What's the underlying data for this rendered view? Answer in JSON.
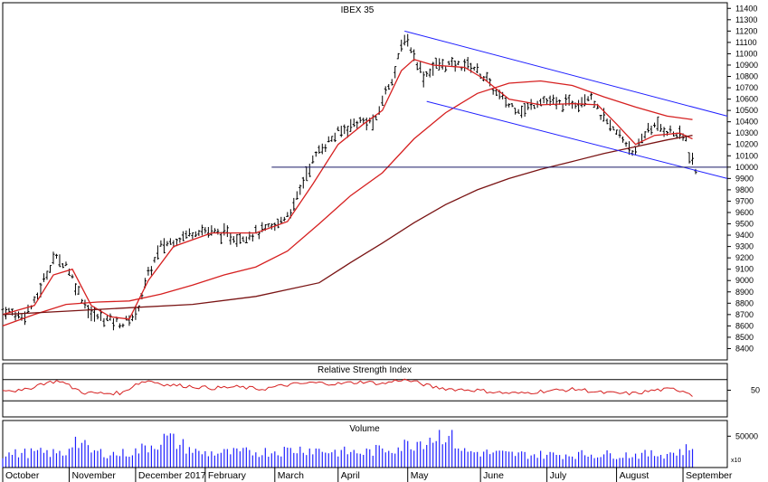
{
  "chart_data": [
    {
      "type": "ohlc",
      "title": "IBEX 35",
      "ylim": [
        8300,
        11450
      ],
      "yticks": [
        8400,
        8500,
        8600,
        8700,
        8800,
        8900,
        9000,
        9100,
        9200,
        9300,
        9400,
        9500,
        9600,
        9700,
        9800,
        9900,
        10000,
        10100,
        10200,
        10300,
        10400,
        10500,
        10600,
        10700,
        10800,
        10900,
        11000,
        11100,
        11200,
        11300,
        11400
      ],
      "x_months": [
        "October",
        "November",
        "December 2017",
        "February",
        "March",
        "April",
        "May",
        "June",
        "July",
        "August",
        "September"
      ],
      "price_path": [
        [
          0,
          8750
        ],
        [
          6,
          8680
        ],
        [
          10,
          8800
        ],
        [
          16,
          9200
        ],
        [
          20,
          9150
        ],
        [
          24,
          8900
        ],
        [
          28,
          8700
        ],
        [
          34,
          8650
        ],
        [
          38,
          8620
        ],
        [
          42,
          8700
        ],
        [
          46,
          9050
        ],
        [
          50,
          9300
        ],
        [
          56,
          9380
        ],
        [
          62,
          9450
        ],
        [
          68,
          9420
        ],
        [
          74,
          9380
        ],
        [
          80,
          9420
        ],
        [
          86,
          9470
        ],
        [
          92,
          9650
        ],
        [
          96,
          9950
        ],
        [
          100,
          10150
        ],
        [
          106,
          10300
        ],
        [
          112,
          10400
        ],
        [
          118,
          10400
        ],
        [
          120,
          10600
        ],
        [
          124,
          10850
        ],
        [
          127,
          11150
        ],
        [
          129,
          11050
        ],
        [
          133,
          10800
        ],
        [
          137,
          10900
        ],
        [
          142,
          10900
        ],
        [
          148,
          10900
        ],
        [
          152,
          10800
        ],
        [
          156,
          10650
        ],
        [
          160,
          10550
        ],
        [
          165,
          10500
        ],
        [
          170,
          10600
        ],
        [
          176,
          10550
        ],
        [
          182,
          10580
        ],
        [
          186,
          10650
        ],
        [
          188,
          10500
        ],
        [
          192,
          10350
        ],
        [
          196,
          10250
        ],
        [
          200,
          10120
        ],
        [
          204,
          10350
        ],
        [
          208,
          10350
        ],
        [
          212,
          10300
        ],
        [
          216,
          10250
        ],
        [
          217,
          10100
        ],
        [
          218,
          10050
        ],
        [
          219,
          9950
        ]
      ],
      "series": [
        {
          "name": "",
          "color": "#d62020",
          "kind": "short-ma",
          "values": [
            [
              0,
              8700
            ],
            [
              10,
              8780
            ],
            [
              16,
              9050
            ],
            [
              22,
              9100
            ],
            [
              28,
              8780
            ],
            [
              34,
              8680
            ],
            [
              40,
              8660
            ],
            [
              46,
              9000
            ],
            [
              54,
              9300
            ],
            [
              66,
              9420
            ],
            [
              80,
              9420
            ],
            [
              90,
              9520
            ],
            [
              98,
              9850
            ],
            [
              106,
              10200
            ],
            [
              114,
              10380
            ],
            [
              120,
              10500
            ],
            [
              126,
              10850
            ],
            [
              130,
              10950
            ],
            [
              136,
              10900
            ],
            [
              146,
              10880
            ],
            [
              152,
              10780
            ],
            [
              160,
              10600
            ],
            [
              170,
              10550
            ],
            [
              180,
              10560
            ],
            [
              188,
              10550
            ],
            [
              194,
              10380
            ],
            [
              200,
              10200
            ],
            [
              206,
              10280
            ],
            [
              214,
              10300
            ],
            [
              218,
              10250
            ]
          ]
        },
        {
          "name": "",
          "color": "#d62020",
          "kind": "long-ma",
          "values": [
            [
              0,
              8600
            ],
            [
              10,
              8700
            ],
            [
              20,
              8790
            ],
            [
              30,
              8810
            ],
            [
              40,
              8820
            ],
            [
              50,
              8880
            ],
            [
              60,
              8960
            ],
            [
              70,
              9050
            ],
            [
              80,
              9120
            ],
            [
              90,
              9260
            ],
            [
              100,
              9500
            ],
            [
              110,
              9750
            ],
            [
              120,
              9950
            ],
            [
              130,
              10250
            ],
            [
              140,
              10480
            ],
            [
              150,
              10650
            ],
            [
              160,
              10740
            ],
            [
              170,
              10760
            ],
            [
              180,
              10720
            ],
            [
              190,
              10620
            ],
            [
              200,
              10530
            ],
            [
              210,
              10450
            ],
            [
              218,
              10420
            ]
          ]
        },
        {
          "name": "",
          "color": "#7a1414",
          "kind": "200-ma",
          "values": [
            [
              0,
              8700
            ],
            [
              20,
              8730
            ],
            [
              40,
              8760
            ],
            [
              60,
              8790
            ],
            [
              80,
              8860
            ],
            [
              100,
              8980
            ],
            [
              110,
              9160
            ],
            [
              120,
              9330
            ],
            [
              130,
              9510
            ],
            [
              140,
              9670
            ],
            [
              150,
              9800
            ],
            [
              160,
              9900
            ],
            [
              170,
              9980
            ],
            [
              180,
              10050
            ],
            [
              190,
              10120
            ],
            [
              200,
              10180
            ],
            [
              210,
              10240
            ],
            [
              218,
              10280
            ]
          ]
        }
      ],
      "channel_lines": [
        {
          "color": "#2020ff",
          "from": [
            127,
            11200
          ],
          "to": [
            229,
            10450
          ]
        },
        {
          "color": "#2020ff",
          "from": [
            134,
            10580
          ],
          "to": [
            229,
            9900
          ]
        },
        {
          "color": "#1a1a66",
          "from": [
            85,
            10000
          ],
          "to": [
            229,
            10000
          ]
        }
      ]
    },
    {
      "type": "line",
      "title": "Relative Strength Index",
      "ylim": [
        0,
        100
      ],
      "yticks": [
        50
      ],
      "reference_levels": [
        30,
        70
      ],
      "series": [
        {
          "name": "",
          "color": "#d62020",
          "values": [
            [
              0,
              52
            ],
            [
              6,
              48
            ],
            [
              12,
              62
            ],
            [
              18,
              68
            ],
            [
              22,
              55
            ],
            [
              26,
              45
            ],
            [
              32,
              44
            ],
            [
              38,
              45
            ],
            [
              42,
              62
            ],
            [
              46,
              68
            ],
            [
              52,
              60
            ],
            [
              58,
              58
            ],
            [
              66,
              54
            ],
            [
              74,
              56
            ],
            [
              82,
              52
            ],
            [
              90,
              60
            ],
            [
              98,
              64
            ],
            [
              106,
              62
            ],
            [
              114,
              66
            ],
            [
              120,
              62
            ],
            [
              126,
              70
            ],
            [
              130,
              66
            ],
            [
              136,
              56
            ],
            [
              142,
              52
            ],
            [
              150,
              50
            ],
            [
              158,
              45
            ],
            [
              164,
              44
            ],
            [
              170,
              48
            ],
            [
              176,
              50
            ],
            [
              182,
              52
            ],
            [
              188,
              46
            ],
            [
              194,
              44
            ],
            [
              200,
              44
            ],
            [
              206,
              50
            ],
            [
              212,
              52
            ],
            [
              216,
              48
            ],
            [
              218,
              40
            ]
          ]
        }
      ]
    },
    {
      "type": "bar",
      "title": "Volume",
      "yticks": [
        50000
      ],
      "scale_label": "x10",
      "ylim": [
        0,
        75000
      ],
      "values": [
        [
          0,
          25000
        ],
        [
          10,
          28000
        ],
        [
          20,
          26000
        ],
        [
          22,
          55000
        ],
        [
          28,
          30000
        ],
        [
          36,
          25000
        ],
        [
          42,
          30000
        ],
        [
          48,
          45000
        ],
        [
          52,
          55000
        ],
        [
          62,
          27000
        ],
        [
          74,
          28000
        ],
        [
          84,
          30000
        ],
        [
          96,
          35000
        ],
        [
          104,
          30000
        ],
        [
          114,
          28000
        ],
        [
          126,
          40000
        ],
        [
          140,
          65000
        ],
        [
          146,
          30000
        ],
        [
          160,
          25000
        ],
        [
          172,
          24000
        ],
        [
          186,
          25000
        ],
        [
          198,
          24000
        ],
        [
          208,
          25000
        ],
        [
          214,
          30000
        ],
        [
          218,
          38000
        ]
      ]
    }
  ]
}
